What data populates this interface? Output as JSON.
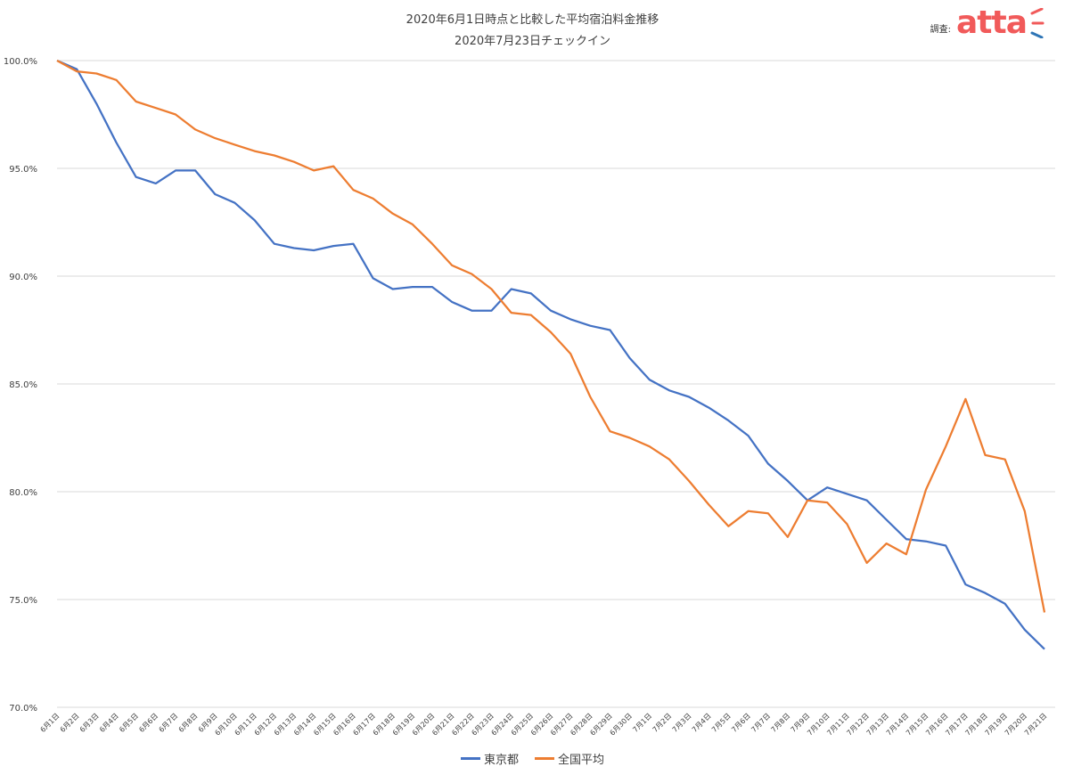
{
  "header": {
    "title_line1": "2020年6月1日時点と比較した平均宿泊料金推移",
    "title_line2": "2020年7月23日チェックイン",
    "source_label": "調査:",
    "logo_text": "atta"
  },
  "colors": {
    "tokyo": "#4472c4",
    "national": "#ed7d31",
    "grid": "#d9d9d9",
    "logo": "#f15a5a",
    "logo_accent": "#2e75b6"
  },
  "chart_data": {
    "type": "line",
    "title": "2020年6月1日時点と比較した平均宿泊料金推移",
    "subtitle": "2020年7月23日チェックイン",
    "ylim": [
      70,
      100
    ],
    "y_ticks": [
      "70.0%",
      "75.0%",
      "80.0%",
      "85.0%",
      "90.0%",
      "95.0%",
      "100.0%"
    ],
    "y_tick_values": [
      70,
      75,
      80,
      85,
      90,
      95,
      100
    ],
    "grid": true,
    "legend_position": "bottom",
    "categories": [
      "6月1日",
      "6月2日",
      "6月3日",
      "6月4日",
      "6月5日",
      "6月6日",
      "6月7日",
      "6月8日",
      "6月9日",
      "6月10日",
      "6月11日",
      "6月12日",
      "6月13日",
      "6月14日",
      "6月15日",
      "6月16日",
      "6月17日",
      "6月18日",
      "6月19日",
      "6月20日",
      "6月21日",
      "6月22日",
      "6月23日",
      "6月24日",
      "6月25日",
      "6月26日",
      "6月27日",
      "6月28日",
      "6月29日",
      "6月30日",
      "7月1日",
      "7月2日",
      "7月3日",
      "7月4日",
      "7月5日",
      "7月6日",
      "7月7日",
      "7月8日",
      "7月9日",
      "7月10日",
      "7月11日",
      "7月12日",
      "7月13日",
      "7月14日",
      "7月15日",
      "7月16日",
      "7月17日",
      "7月18日",
      "7月19日",
      "7月20日",
      "7月21日"
    ],
    "series": [
      {
        "name": "東京都",
        "values": [
          100.0,
          99.6,
          98.0,
          96.2,
          94.6,
          94.3,
          94.9,
          94.9,
          93.8,
          93.4,
          92.6,
          91.5,
          91.3,
          91.2,
          91.4,
          91.5,
          89.9,
          89.4,
          89.5,
          89.5,
          88.8,
          88.4,
          88.4,
          89.4,
          89.2,
          88.4,
          88.0,
          87.7,
          87.5,
          86.2,
          85.2,
          84.7,
          84.4,
          83.9,
          83.3,
          82.6,
          81.3,
          80.5,
          79.6,
          80.2,
          79.9,
          79.6,
          78.7,
          77.8,
          77.7,
          77.5,
          75.7,
          75.3,
          74.8,
          73.6,
          72.7
        ]
      },
      {
        "name": "全国平均",
        "values": [
          100.0,
          99.5,
          99.4,
          99.1,
          98.1,
          97.8,
          97.5,
          96.8,
          96.4,
          96.1,
          95.8,
          95.6,
          95.3,
          94.9,
          95.1,
          94.0,
          93.6,
          92.9,
          92.4,
          91.5,
          90.5,
          90.1,
          89.4,
          88.3,
          88.2,
          87.4,
          86.4,
          84.4,
          82.8,
          82.5,
          82.1,
          81.5,
          80.5,
          79.4,
          78.4,
          79.1,
          79.0,
          77.9,
          79.6,
          79.5,
          78.5,
          76.7,
          77.6,
          77.1,
          80.1,
          82.1,
          84.3,
          81.7,
          81.5,
          79.1,
          74.4
        ]
      }
    ]
  },
  "legend": {
    "items": [
      "東京都",
      "全国平均"
    ]
  }
}
